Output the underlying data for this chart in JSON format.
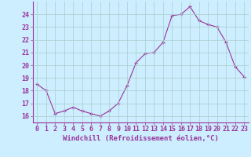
{
  "x": [
    0,
    1,
    2,
    3,
    4,
    5,
    6,
    7,
    8,
    9,
    10,
    11,
    12,
    13,
    14,
    15,
    16,
    17,
    18,
    19,
    20,
    21,
    22,
    23
  ],
  "y": [
    18.5,
    18.0,
    16.2,
    16.4,
    16.7,
    16.4,
    16.2,
    16.0,
    16.4,
    17.0,
    18.4,
    20.2,
    20.9,
    21.0,
    21.8,
    23.9,
    24.0,
    24.6,
    23.5,
    23.2,
    23.0,
    21.8,
    19.9,
    19.1
  ],
  "line_color": "#993399",
  "marker": "+",
  "marker_size": 3.5,
  "bg_color": "#cceeff",
  "grid_color": "#aacccc",
  "xlabel": "Windchill (Refroidissement éolien,°C)",
  "ylim": [
    15.5,
    25.0
  ],
  "yticks": [
    16,
    17,
    18,
    19,
    20,
    21,
    22,
    23,
    24
  ],
  "xticks": [
    0,
    1,
    2,
    3,
    4,
    5,
    6,
    7,
    8,
    9,
    10,
    11,
    12,
    13,
    14,
    15,
    16,
    17,
    18,
    19,
    20,
    21,
    22,
    23
  ],
  "label_fontsize": 6.5,
  "tick_fontsize": 6.0
}
